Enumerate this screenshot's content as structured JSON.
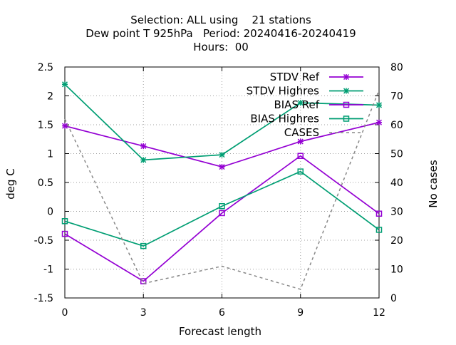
{
  "chart_data": {
    "type": "line",
    "title_lines": [
      "Selection: ALL using    21 stations",
      "Dew point T 925hPa   Period: 20240416-20240419",
      "Hours:  00"
    ],
    "xlabel": "Forecast length",
    "ylabel": "deg C",
    "y2label": "No cases",
    "x": [
      0,
      3,
      6,
      9,
      12
    ],
    "xlim": [
      0,
      12
    ],
    "xticks": [
      "0",
      "3",
      "6",
      "9",
      "12"
    ],
    "ylim": [
      -1.5,
      2.5
    ],
    "yticks": [
      "-1.5",
      "-1",
      "-0.5",
      "0",
      "0.5",
      "1",
      "1.5",
      "2",
      "2.5"
    ],
    "y2lim": [
      0,
      80
    ],
    "y2ticks": [
      "0",
      "10",
      "20",
      "30",
      "40",
      "50",
      "60",
      "70",
      "80"
    ],
    "grid": true,
    "legend_position": "top-right",
    "series": [
      {
        "name": "STDV Ref",
        "axis": "y1",
        "color": "#9400d3",
        "marker": "x-star",
        "dash": false,
        "values": [
          1.48,
          1.13,
          0.77,
          1.21,
          1.54
        ]
      },
      {
        "name": "STDV Highres",
        "axis": "y1",
        "color": "#009e73",
        "marker": "x-star",
        "dash": false,
        "values": [
          2.2,
          0.89,
          0.98,
          1.88,
          1.84
        ]
      },
      {
        "name": "BIAS Ref",
        "axis": "y1",
        "color": "#9400d3",
        "marker": "square",
        "dash": false,
        "values": [
          -0.39,
          -1.21,
          -0.03,
          0.96,
          -0.04
        ]
      },
      {
        "name": "BIAS Highres",
        "axis": "y1",
        "color": "#009e73",
        "marker": "square",
        "dash": false,
        "values": [
          -0.17,
          -0.6,
          0.09,
          0.69,
          -0.32
        ]
      },
      {
        "name": "CASES",
        "axis": "y2",
        "color": "#888888",
        "marker": "none",
        "dash": true,
        "values": [
          62,
          5,
          11,
          3,
          72
        ]
      }
    ]
  }
}
